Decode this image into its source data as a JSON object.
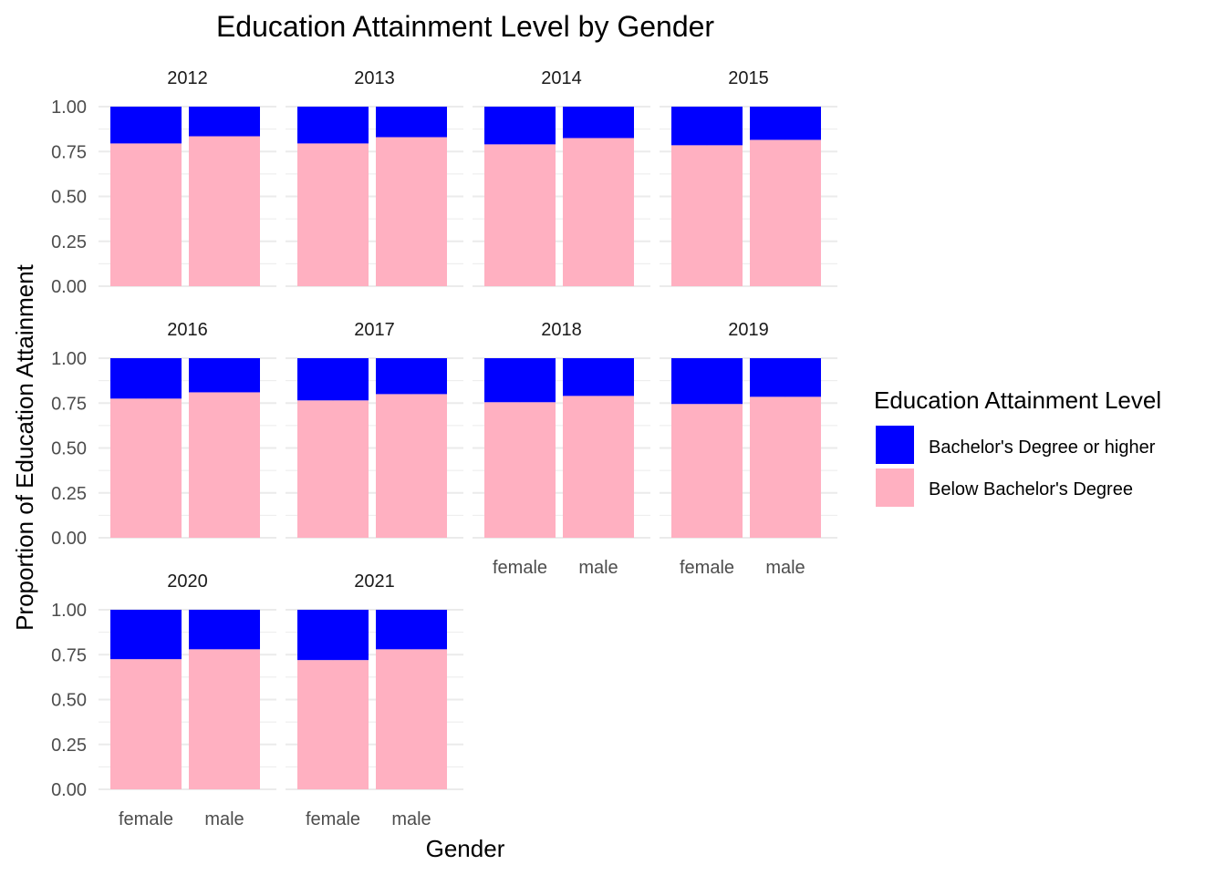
{
  "chart_data": {
    "type": "bar",
    "stacked": true,
    "title": "Education Attainment Level by Gender",
    "xlabel": "Gender",
    "ylabel": "Proportion of Education Attainment",
    "ylim": [
      0,
      1
    ],
    "yticks": [
      "0.00",
      "0.25",
      "0.50",
      "0.75",
      "1.00"
    ],
    "categories": [
      "female",
      "male"
    ],
    "grid": true,
    "legend": {
      "title": "Education Attainment Level",
      "placement": "right",
      "entries": [
        {
          "name": "Bachelor's Degree or higher",
          "color": "#0000ff"
        },
        {
          "name": "Below Bachelor's Degree",
          "color": "#ffb0c1"
        }
      ]
    },
    "panels": [
      {
        "year": "2012",
        "below": [
          0.795,
          0.835
        ],
        "bachelor": [
          0.205,
          0.165
        ]
      },
      {
        "year": "2013",
        "below": [
          0.795,
          0.83
        ],
        "bachelor": [
          0.205,
          0.17
        ]
      },
      {
        "year": "2014",
        "below": [
          0.79,
          0.825
        ],
        "bachelor": [
          0.21,
          0.175
        ]
      },
      {
        "year": "2015",
        "below": [
          0.785,
          0.815
        ],
        "bachelor": [
          0.215,
          0.185
        ]
      },
      {
        "year": "2016",
        "below": [
          0.775,
          0.81
        ],
        "bachelor": [
          0.225,
          0.19
        ]
      },
      {
        "year": "2017",
        "below": [
          0.765,
          0.8
        ],
        "bachelor": [
          0.235,
          0.2
        ]
      },
      {
        "year": "2018",
        "below": [
          0.755,
          0.79
        ],
        "bachelor": [
          0.245,
          0.21
        ]
      },
      {
        "year": "2019",
        "below": [
          0.745,
          0.785
        ],
        "bachelor": [
          0.255,
          0.215
        ]
      },
      {
        "year": "2020",
        "below": [
          0.725,
          0.78
        ],
        "bachelor": [
          0.275,
          0.22
        ]
      },
      {
        "year": "2021",
        "below": [
          0.72,
          0.78
        ],
        "bachelor": [
          0.28,
          0.22
        ]
      }
    ]
  }
}
